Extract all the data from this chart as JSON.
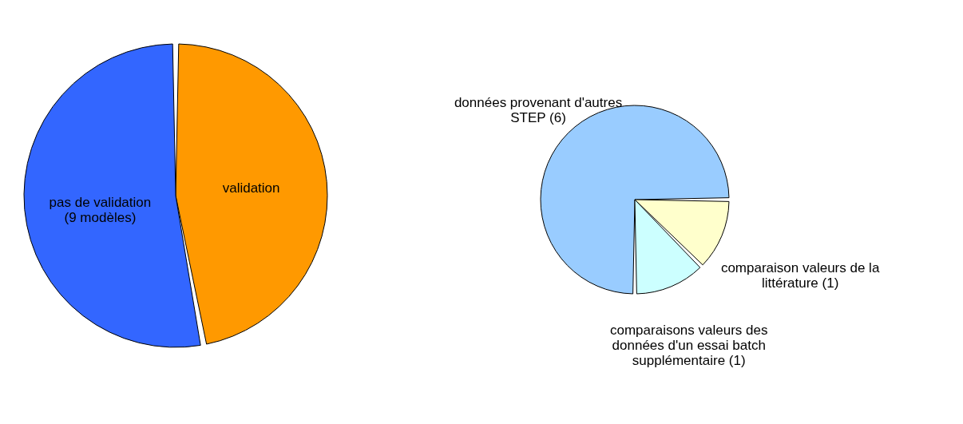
{
  "chart_data": [
    {
      "type": "pie",
      "categories": [
        "validation",
        "pas de validation (9 modèles)"
      ],
      "values": [
        8,
        9
      ],
      "colors": [
        "#ff9900",
        "#3366ff"
      ],
      "legend": false
    },
    {
      "type": "pie",
      "categories": [
        "données provenant d'autres STEP (6)",
        "comparaison valeurs de la littérature (1)",
        "comparaisons valeurs des données d'un essai batch supplémentaire (1)"
      ],
      "values": [
        6,
        1,
        1
      ],
      "colors": [
        "#99ccff",
        "#ffffcc",
        "#ccffff"
      ],
      "legend": false
    }
  ]
}
